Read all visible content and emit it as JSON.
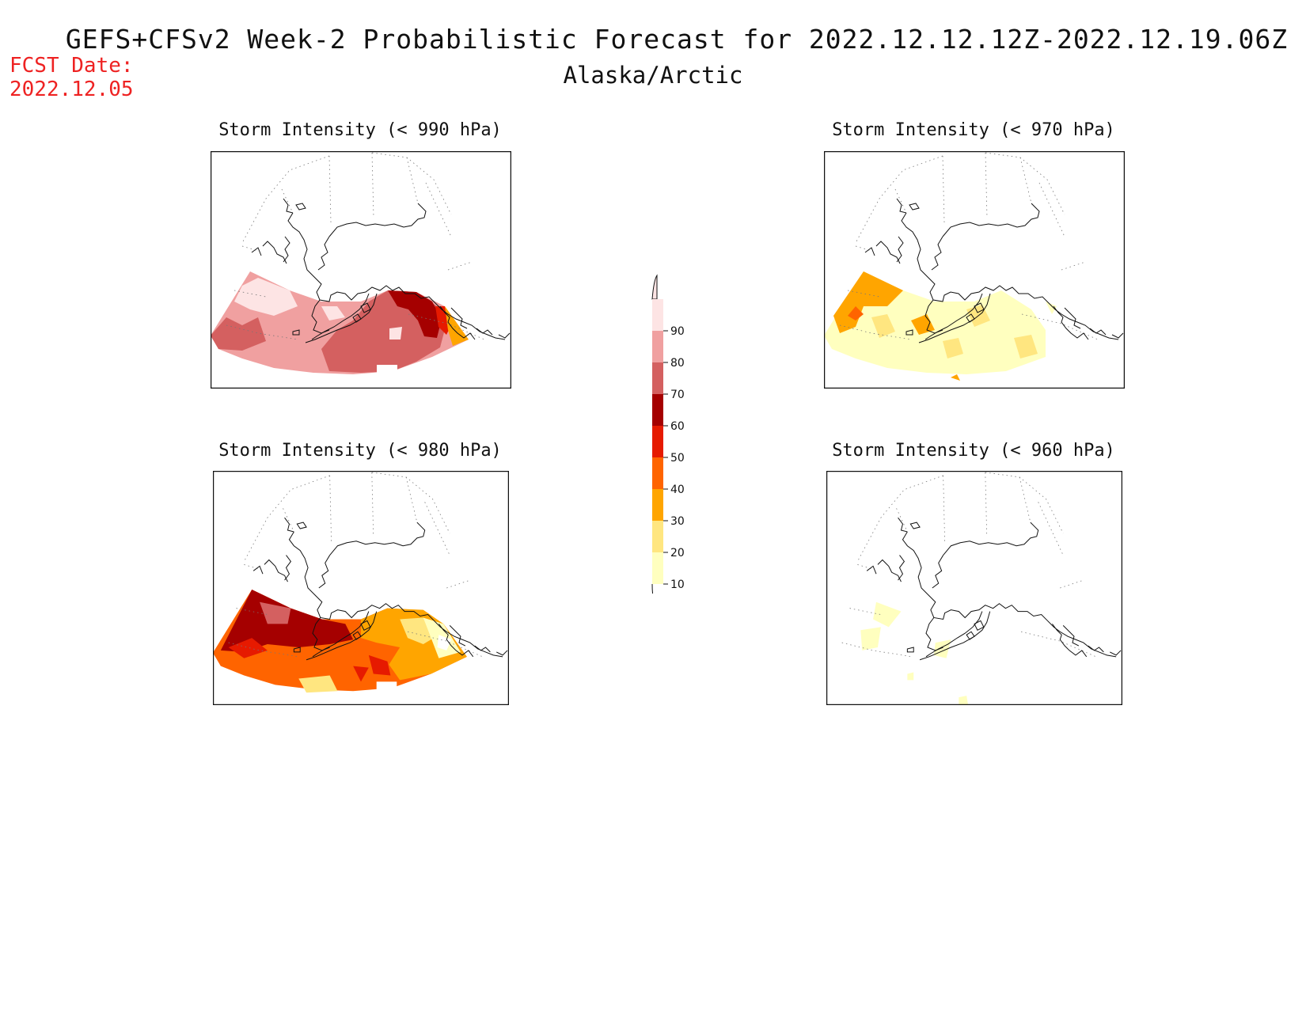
{
  "header": {
    "title": "GEFS+CFSv2 Week-2 Probabilistic Forecast for 2022.12.12.12Z-2022.12.19.06Z",
    "subtitle": "Alaska/Arctic",
    "fcst_date_label": "FCST Date:",
    "fcst_date_value": "2022.12.05"
  },
  "panels": [
    {
      "id": "p990",
      "title": "Storm Intensity (< 990 hPa)"
    },
    {
      "id": "p970",
      "title": "Storm Intensity (< 970 hPa)"
    },
    {
      "id": "p980",
      "title": "Storm Intensity (< 980 hPa)"
    },
    {
      "id": "p960",
      "title": "Storm Intensity (< 960 hPa)"
    }
  ],
  "legend": {
    "levels": [
      "10",
      "20",
      "30",
      "40",
      "50",
      "60",
      "70",
      "80",
      "90"
    ],
    "colors": {
      "lt10": "#ffffff",
      "10-20": "#ffffbf",
      "20-30": "#ffe680",
      "30-40": "#ffa500",
      "40-50": "#ff6400",
      "50-60": "#e61a00",
      "60-70": "#a50000",
      "70-80": "#d46060",
      "80-90": "#f0a0a0",
      "gt90": "#fde4e4"
    }
  }
}
